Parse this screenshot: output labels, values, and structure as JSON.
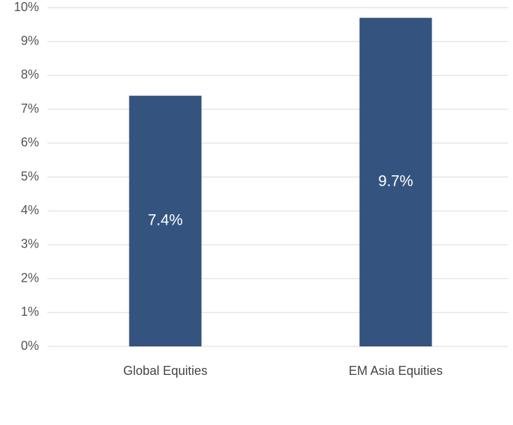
{
  "chart_data": {
    "type": "bar",
    "categories": [
      "Global Equities",
      "EM Asia Equities"
    ],
    "values": [
      7.4,
      9.7
    ],
    "value_labels": [
      "7.4%",
      "9.7%"
    ],
    "color": "#34547f",
    "ylim": [
      0,
      10
    ],
    "yticks": [
      {
        "value": 0,
        "label": "0%"
      },
      {
        "value": 1,
        "label": "1%"
      },
      {
        "value": 2,
        "label": "2%"
      },
      {
        "value": 3,
        "label": "3%"
      },
      {
        "value": 4,
        "label": "4%"
      },
      {
        "value": 5,
        "label": "5%"
      },
      {
        "value": 6,
        "label": "6%"
      },
      {
        "value": 7,
        "label": "7%"
      },
      {
        "value": 8,
        "label": "8%"
      },
      {
        "value": 9,
        "label": "9%"
      },
      {
        "value": 10,
        "label": "10%"
      }
    ],
    "grid": true
  }
}
